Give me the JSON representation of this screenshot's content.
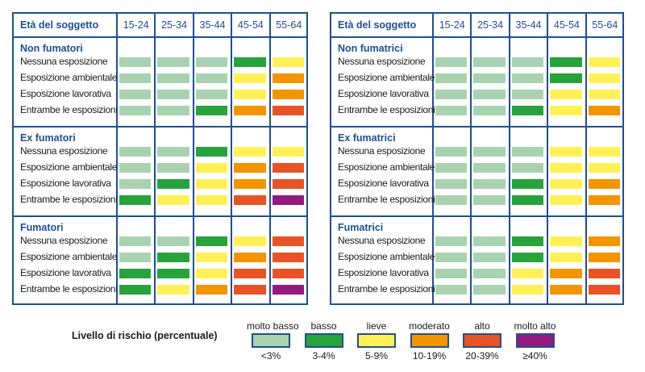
{
  "chart_data": {
    "type": "heatmap",
    "title": "",
    "legend": {
      "title": "Livello di rischio (percentuale)",
      "levels": [
        {
          "key": "molto_basso",
          "label": "molto basso",
          "range": "<3%",
          "color": "#a9d3b0"
        },
        {
          "key": "basso",
          "label": "basso",
          "range": "3-4%",
          "color": "#27a33b"
        },
        {
          "key": "lieve",
          "label": "lieve",
          "range": "5-9%",
          "color": "#fff155"
        },
        {
          "key": "moderato",
          "label": "moderato",
          "range": "10-19%",
          "color": "#f29500"
        },
        {
          "key": "alto",
          "label": "alto",
          "range": "20-39%",
          "color": "#e85325"
        },
        {
          "key": "molto_alto",
          "label": "molto alto",
          "range": "≥40%",
          "color": "#941a7f"
        }
      ],
      "placement": "bottom"
    },
    "tables": [
      {
        "header_label": "Età del soggetto",
        "age_groups": [
          "15-24",
          "25-34",
          "35-44",
          "45-54",
          "55-64"
        ],
        "sections": [
          {
            "title": "Non fumatori",
            "rows": [
              {
                "label": "Nessuna esposizione",
                "levels": [
                  "molto_basso",
                  "molto_basso",
                  "molto_basso",
                  "basso",
                  "lieve"
                ]
              },
              {
                "label": "Esposizione ambientale",
                "levels": [
                  "molto_basso",
                  "molto_basso",
                  "molto_basso",
                  "lieve",
                  "moderato"
                ]
              },
              {
                "label": "Esposizione lavorativa",
                "levels": [
                  "molto_basso",
                  "molto_basso",
                  "molto_basso",
                  "lieve",
                  "moderato"
                ]
              },
              {
                "label": "Entrambe le esposizioni",
                "levels": [
                  "molto_basso",
                  "molto_basso",
                  "basso",
                  "moderato",
                  "alto"
                ]
              }
            ]
          },
          {
            "title": "Ex fumatori",
            "rows": [
              {
                "label": "Nessuna esposizione",
                "levels": [
                  "molto_basso",
                  "molto_basso",
                  "basso",
                  "lieve",
                  "lieve"
                ]
              },
              {
                "label": "Esposizione ambientale",
                "levels": [
                  "molto_basso",
                  "molto_basso",
                  "lieve",
                  "moderato",
                  "alto"
                ]
              },
              {
                "label": "Esposizione lavorativa",
                "levels": [
                  "molto_basso",
                  "basso",
                  "lieve",
                  "moderato",
                  "alto"
                ]
              },
              {
                "label": "Entrambe le esposizioni",
                "levels": [
                  "basso",
                  "lieve",
                  "lieve",
                  "alto",
                  "molto_alto"
                ]
              }
            ]
          },
          {
            "title": "Fumatori",
            "rows": [
              {
                "label": "Nessuna esposizione",
                "levels": [
                  "molto_basso",
                  "molto_basso",
                  "basso",
                  "lieve",
                  "alto"
                ]
              },
              {
                "label": "Esposizione ambientale",
                "levels": [
                  "molto_basso",
                  "basso",
                  "lieve",
                  "moderato",
                  "alto"
                ]
              },
              {
                "label": "Esposizione lavorativa",
                "levels": [
                  "basso",
                  "basso",
                  "lieve",
                  "alto",
                  "alto"
                ]
              },
              {
                "label": "Entrambe le esposizioni",
                "levels": [
                  "basso",
                  "lieve",
                  "moderato",
                  "alto",
                  "molto_alto"
                ]
              }
            ]
          }
        ]
      },
      {
        "header_label": "Età del soggetto",
        "age_groups": [
          "15-24",
          "25-34",
          "35-44",
          "45-54",
          "55-64"
        ],
        "sections": [
          {
            "title": "Non fumatrici",
            "rows": [
              {
                "label": "Nessuna esposizione",
                "levels": [
                  "molto_basso",
                  "molto_basso",
                  "molto_basso",
                  "basso",
                  "lieve"
                ]
              },
              {
                "label": "Esposizione ambientale",
                "levels": [
                  "molto_basso",
                  "molto_basso",
                  "molto_basso",
                  "basso",
                  "lieve"
                ]
              },
              {
                "label": "Esposizione lavorativa",
                "levels": [
                  "molto_basso",
                  "molto_basso",
                  "molto_basso",
                  "lieve",
                  "lieve"
                ]
              },
              {
                "label": "Entrambe le esposizioni",
                "levels": [
                  "molto_basso",
                  "molto_basso",
                  "basso",
                  "lieve",
                  "moderato"
                ]
              }
            ]
          },
          {
            "title": "Ex fumatrici",
            "rows": [
              {
                "label": "Nessuna esposizione",
                "levels": [
                  "molto_basso",
                  "molto_basso",
                  "molto_basso",
                  "lieve",
                  "lieve"
                ]
              },
              {
                "label": "Esposizione ambientale",
                "levels": [
                  "molto_basso",
                  "molto_basso",
                  "molto_basso",
                  "lieve",
                  "lieve"
                ]
              },
              {
                "label": "Esposizione lavorativa",
                "levels": [
                  "molto_basso",
                  "molto_basso",
                  "basso",
                  "lieve",
                  "moderato"
                ]
              },
              {
                "label": "Entrambe le esposizioni",
                "levels": [
                  "molto_basso",
                  "molto_basso",
                  "basso",
                  "lieve",
                  "moderato"
                ]
              }
            ]
          },
          {
            "title": "Fumatrici",
            "rows": [
              {
                "label": "Nessuna esposizione",
                "levels": [
                  "molto_basso",
                  "molto_basso",
                  "basso",
                  "lieve",
                  "moderato"
                ]
              },
              {
                "label": "Esposizione ambientale",
                "levels": [
                  "molto_basso",
                  "molto_basso",
                  "basso",
                  "lieve",
                  "moderato"
                ]
              },
              {
                "label": "Esposizione lavorativa",
                "levels": [
                  "molto_basso",
                  "molto_basso",
                  "lieve",
                  "moderato",
                  "alto"
                ]
              },
              {
                "label": "Entrambe le esposizioni",
                "levels": [
                  "molto_basso",
                  "molto_basso",
                  "lieve",
                  "moderato",
                  "alto"
                ]
              }
            ]
          }
        ]
      }
    ]
  },
  "colors": {
    "border": "#1f4e96",
    "heading": "#1f4e96"
  }
}
